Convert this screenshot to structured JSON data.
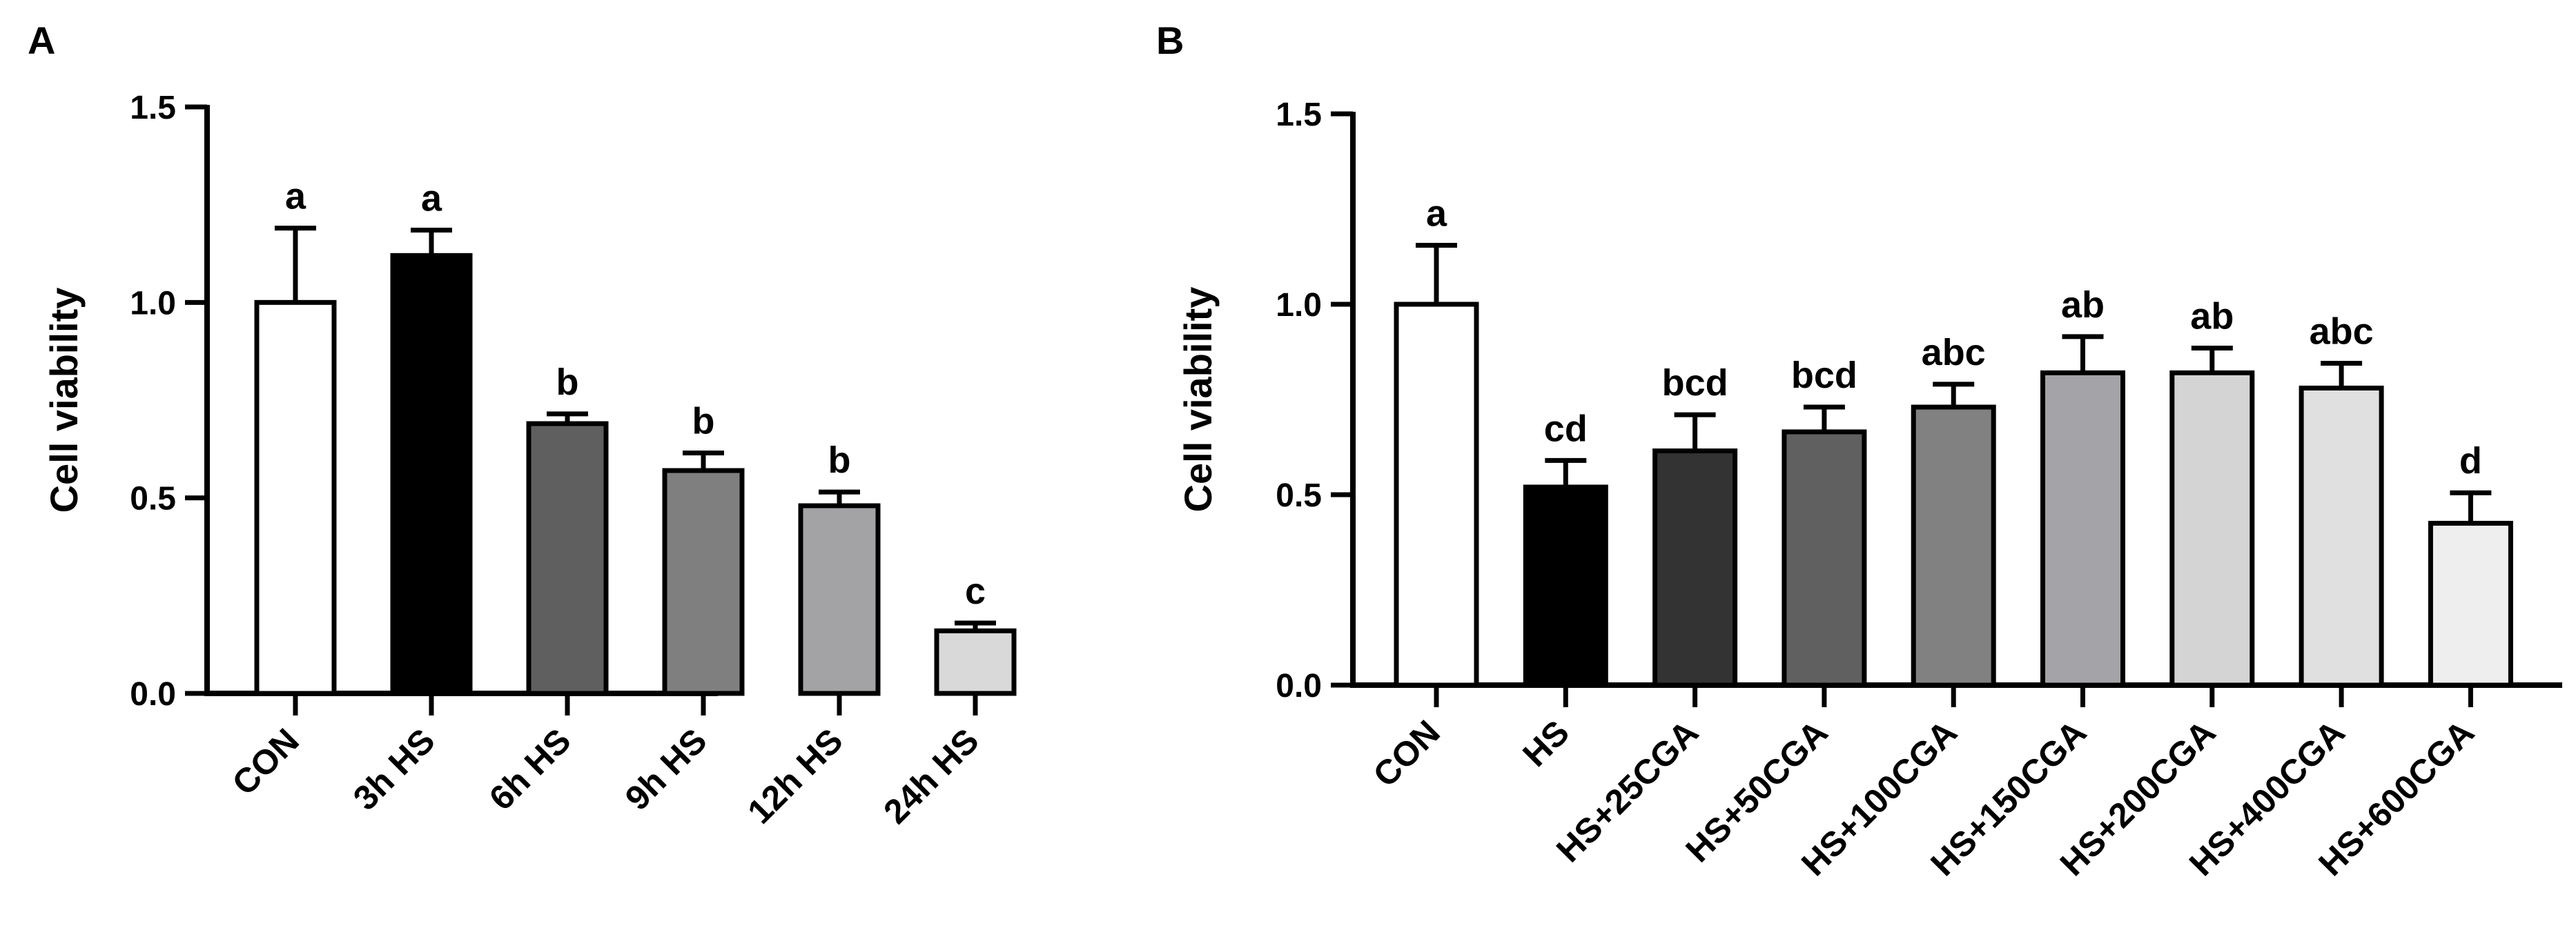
{
  "chart_data": [
    {
      "type": "bar",
      "panel_label": "A",
      "ylabel": "Cell viability",
      "xlabel": "",
      "ylim": [
        0,
        1.5
      ],
      "yticks": [
        0.0,
        0.5,
        1.0,
        1.5
      ],
      "ytick_labels": [
        "0.0",
        "0.5",
        "1.0",
        "1.5"
      ],
      "categories": [
        "CON",
        "3h HS",
        "6h HS",
        "9h HS",
        "12h HS",
        "24h HS"
      ],
      "values": [
        1.0,
        1.12,
        0.69,
        0.57,
        0.48,
        0.16
      ],
      "errors": [
        0.19,
        0.065,
        0.025,
        0.045,
        0.035,
        0.02
      ],
      "significance": [
        "a",
        "a",
        "b",
        "b",
        "b",
        "c"
      ],
      "bar_colors": [
        "#ffffff",
        "#000000",
        "#5f5f5f",
        "#7f7f7f",
        "#a3a3a6",
        "#d9d9d9"
      ]
    },
    {
      "type": "bar",
      "panel_label": "B",
      "ylabel": "Cell viability",
      "xlabel": "",
      "ylim": [
        0,
        1.5
      ],
      "yticks": [
        0.0,
        0.5,
        1.0,
        1.5
      ],
      "ytick_labels": [
        "0.0",
        "0.5",
        "1.0",
        "1.5"
      ],
      "categories": [
        "CON",
        "HS",
        "HS+25CGA",
        "HS+50CGA",
        "HS+100CGA",
        "HS+150CGA",
        "HS+200CGA",
        "HS+400CGA",
        "HS+600CGA"
      ],
      "values": [
        1.0,
        0.52,
        0.615,
        0.665,
        0.73,
        0.82,
        0.82,
        0.78,
        0.425
      ],
      "errors": [
        0.155,
        0.07,
        0.095,
        0.065,
        0.06,
        0.095,
        0.065,
        0.065,
        0.08
      ],
      "significance": [
        "a",
        "cd",
        "bcd",
        "bcd",
        "abc",
        "ab",
        "ab",
        "abc",
        "d"
      ],
      "bar_colors": [
        "#ffffff",
        "#000000",
        "#333333",
        "#606060",
        "#818181",
        "#a4a4a8",
        "#d4d4d4",
        "#e0e0e0",
        "#eeeeee"
      ]
    }
  ]
}
